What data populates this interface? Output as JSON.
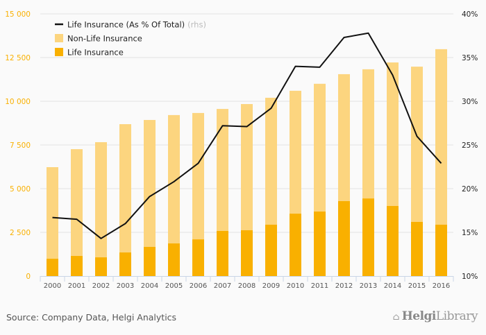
{
  "chart_data": {
    "type": "bar",
    "stacked": true,
    "categories": [
      "2000",
      "2001",
      "2002",
      "2003",
      "2004",
      "2005",
      "2006",
      "2007",
      "2008",
      "2009",
      "2010",
      "2011",
      "2012",
      "2013",
      "2014",
      "2015",
      "2016"
    ],
    "series": [
      {
        "name": "Life Insurance",
        "type": "bar",
        "axis": "left",
        "color": "#f9b000",
        "values": [
          990,
          1150,
          1070,
          1350,
          1670,
          1870,
          2100,
          2580,
          2620,
          2940,
          3570,
          3690,
          4290,
          4440,
          4010,
          3100,
          2940
        ]
      },
      {
        "name": "Non-Life Insurance",
        "type": "bar",
        "axis": "left",
        "color": "#fcd57f",
        "values": [
          5240,
          6110,
          6590,
          7340,
          7260,
          7340,
          7230,
          6980,
          7220,
          7260,
          7030,
          7310,
          7260,
          7390,
          8210,
          8880,
          10040
        ]
      },
      {
        "name": "Life Insurance (As % Of Total)",
        "suffix": "(rhs)",
        "type": "line",
        "axis": "right",
        "color": "#111111",
        "values": [
          16.7,
          16.5,
          14.3,
          16.0,
          19.1,
          20.8,
          22.9,
          27.2,
          27.1,
          29.2,
          34.0,
          33.9,
          37.3,
          37.8,
          33.0,
          26.0,
          22.9
        ]
      }
    ],
    "yleft": {
      "lim": [
        0,
        15000
      ],
      "ticks": [
        0,
        2500,
        5000,
        7500,
        10000,
        12500,
        15000
      ],
      "tick_labels": [
        "0",
        "2 500",
        "5 000",
        "7 500",
        "10 000",
        "12 500",
        "15 000"
      ]
    },
    "yright": {
      "lim": [
        10,
        40
      ],
      "ticks": [
        10,
        15,
        20,
        25,
        30,
        35,
        40
      ],
      "tick_labels": [
        "10%",
        "15%",
        "20%",
        "25%",
        "30%",
        "35%",
        "40%"
      ]
    },
    "legend": {
      "placement": "top-left",
      "entries": [
        "Life Insurance (As % Of Total)",
        "Non-Life Insurance",
        "Life Insurance"
      ],
      "rhs_note": "(rhs)"
    },
    "grid": true
  },
  "footer": {
    "source": "Source: Company Data, Helgi Analytics",
    "logo_bold": "Helgi",
    "logo_rest": "Library"
  }
}
